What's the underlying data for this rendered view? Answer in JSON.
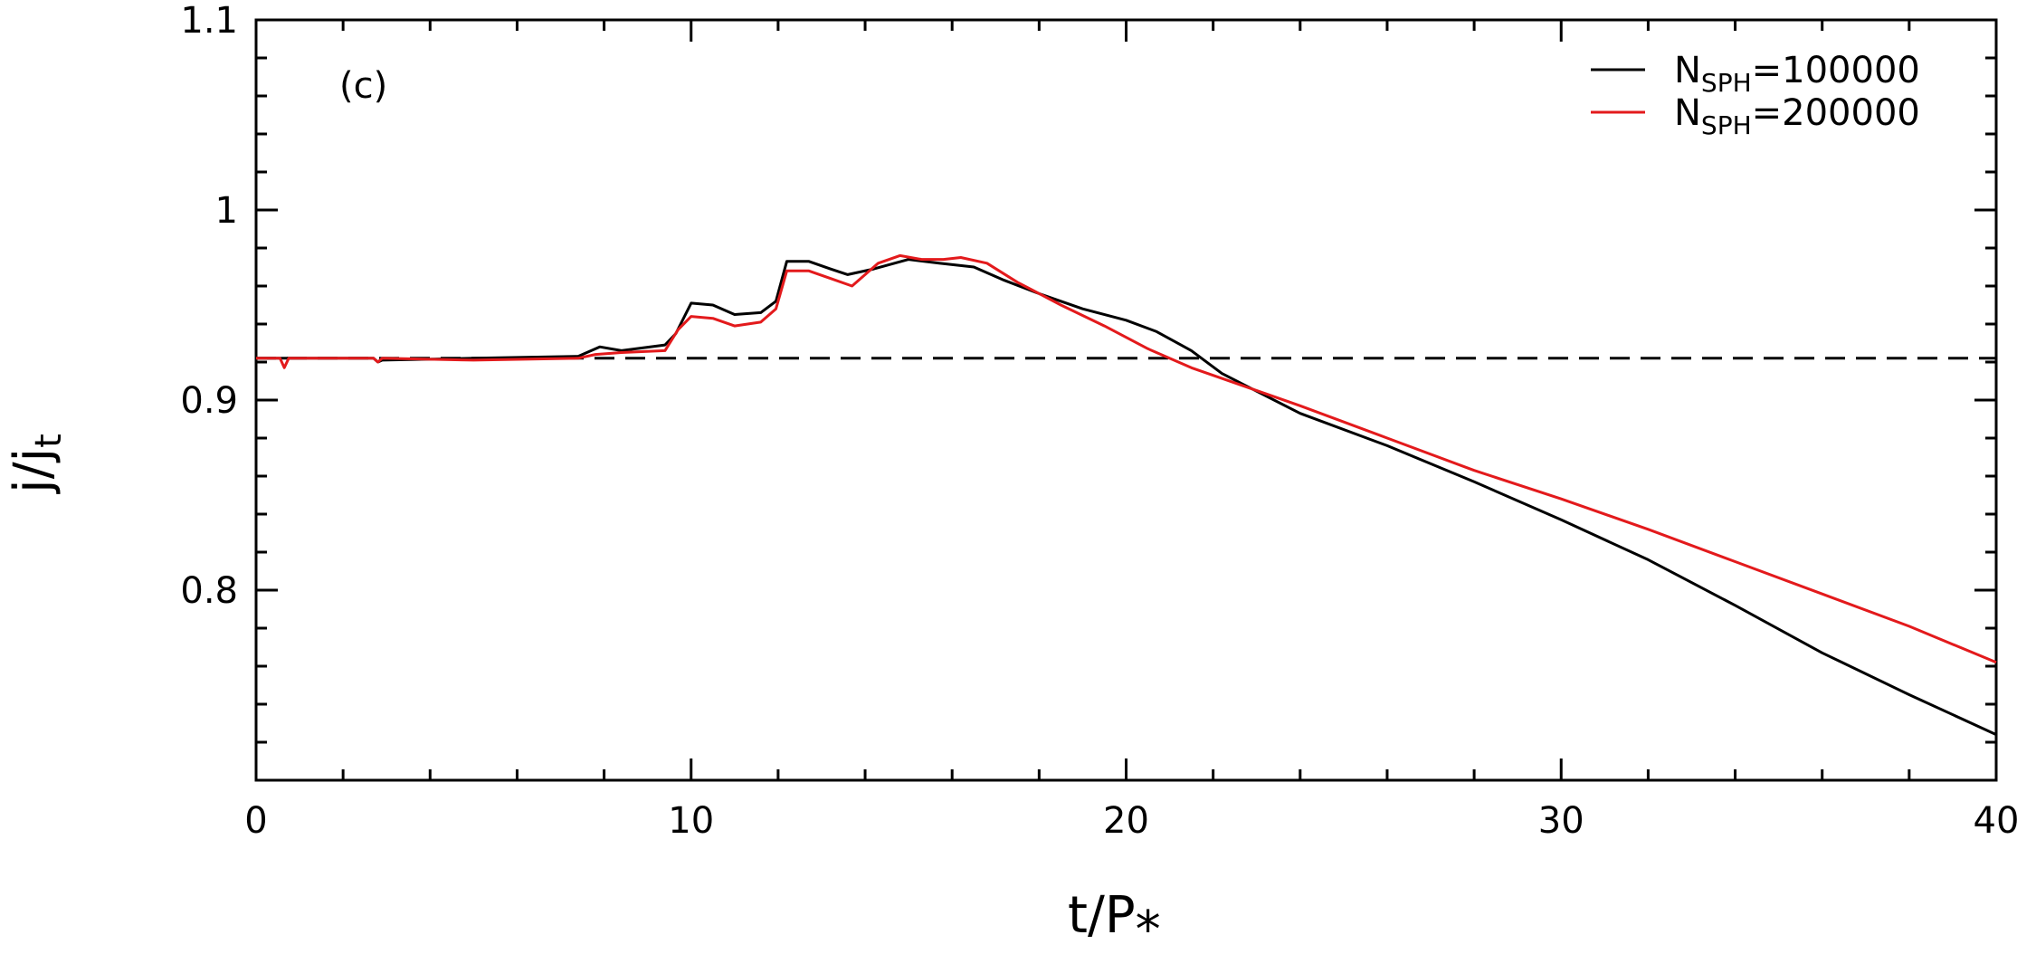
{
  "chart_data": {
    "type": "line",
    "panel_label": "(c)",
    "xlabel": "t/P",
    "xlabel_sub": "*",
    "ylabel": "j/j",
    "ylabel_sub": "t",
    "xlim": [
      0,
      40
    ],
    "ylim": [
      0.7,
      1.1
    ],
    "x_ticks": [
      "0",
      "10",
      "20",
      "30",
      "40"
    ],
    "y_ticks": [
      "0.8",
      "0.9",
      "1",
      "1.1"
    ],
    "y_tick_values": [
      0.8,
      0.9,
      1.0,
      1.1
    ],
    "x_tick_values": [
      0,
      10,
      20,
      30,
      40
    ],
    "x_minor_step": 2,
    "y_minor_step": 0.02,
    "legend_position": "top-right",
    "reference_line": {
      "y": 0.922,
      "style": "dashed",
      "color": "#000000"
    },
    "series": [
      {
        "name": "N",
        "name_sub": "SPH",
        "name_suffix": "=100000",
        "color": "#000000",
        "x": [
          0,
          2.7,
          2.8,
          2.9,
          5,
          7.4,
          7.9,
          8.4,
          9.4,
          9.65,
          10.0,
          10.5,
          11.0,
          11.6,
          11.95,
          12.2,
          12.7,
          13.2,
          13.6,
          14.2,
          15.0,
          15.7,
          16.5,
          17.2,
          18.0,
          19.0,
          20.0,
          20.7,
          21.5,
          22.2,
          22.8,
          24.0,
          26.0,
          28.0,
          30.0,
          32.0,
          34.0,
          36.0,
          38.0,
          40.0
        ],
        "y": [
          0.922,
          0.922,
          0.92,
          0.921,
          0.922,
          0.923,
          0.928,
          0.926,
          0.929,
          0.935,
          0.951,
          0.95,
          0.945,
          0.946,
          0.952,
          0.973,
          0.973,
          0.969,
          0.966,
          0.969,
          0.974,
          0.972,
          0.97,
          0.963,
          0.956,
          0.948,
          0.942,
          0.936,
          0.926,
          0.914,
          0.907,
          0.893,
          0.876,
          0.857,
          0.837,
          0.816,
          0.792,
          0.767,
          0.745,
          0.724
        ]
      },
      {
        "name": "N",
        "name_sub": "SPH",
        "name_suffix": "=200000",
        "color": "#e31a1c",
        "x": [
          0,
          0.55,
          0.65,
          0.75,
          2.7,
          2.8,
          2.9,
          5,
          7.4,
          7.8,
          8.4,
          9.4,
          9.7,
          10.0,
          10.5,
          11.0,
          11.6,
          11.95,
          12.2,
          12.7,
          13.2,
          13.7,
          14.3,
          14.8,
          15.3,
          15.8,
          16.2,
          16.8,
          17.5,
          18.5,
          19.5,
          20.5,
          21.5,
          22.5,
          24.0,
          26.0,
          28.0,
          30.0,
          32.0,
          34.0,
          36.0,
          38.0,
          40.0
        ],
        "y": [
          0.922,
          0.922,
          0.917,
          0.922,
          0.922,
          0.92,
          0.922,
          0.921,
          0.922,
          0.924,
          0.925,
          0.926,
          0.937,
          0.944,
          0.943,
          0.939,
          0.941,
          0.948,
          0.968,
          0.968,
          0.964,
          0.96,
          0.972,
          0.976,
          0.974,
          0.974,
          0.975,
          0.972,
          0.962,
          0.95,
          0.939,
          0.927,
          0.917,
          0.909,
          0.897,
          0.88,
          0.863,
          0.848,
          0.832,
          0.815,
          0.798,
          0.781,
          0.762
        ]
      }
    ]
  }
}
